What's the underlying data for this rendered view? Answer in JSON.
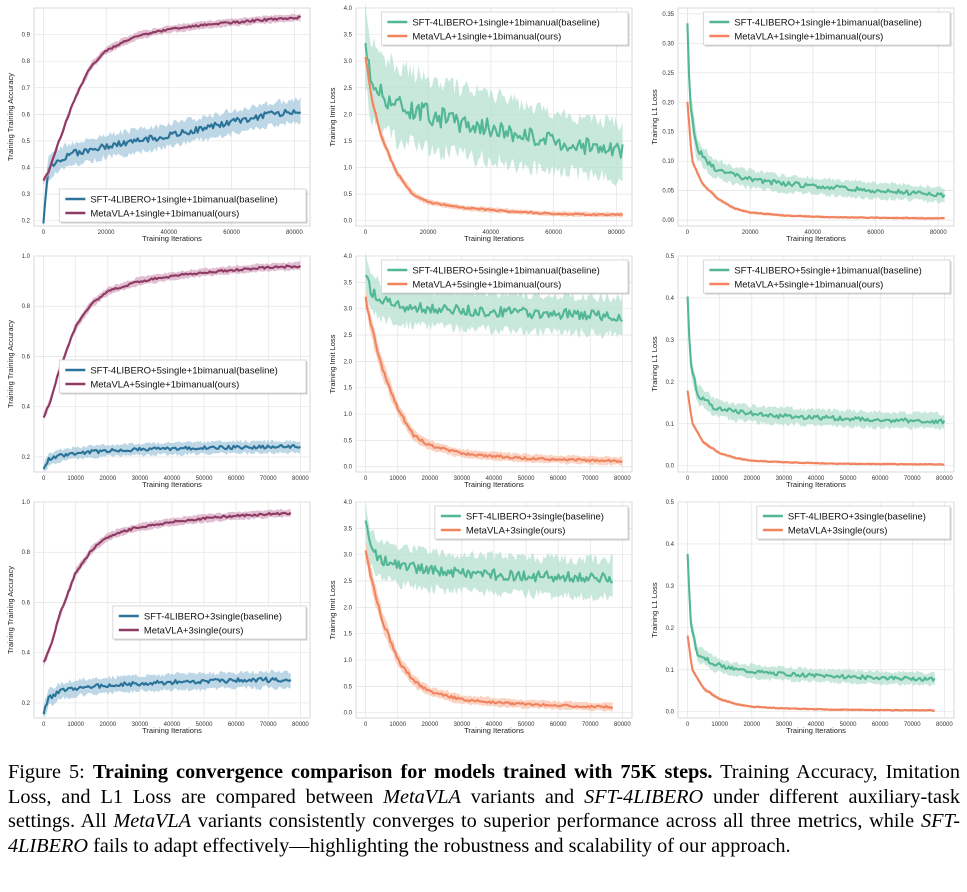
{
  "colors": {
    "baseline_acc": "#2b7399",
    "baseline_acc_band": "#a7c9de",
    "ours_acc": "#8e3a63",
    "ours_acc_band": "#d7a8c2",
    "baseline_loss": "#52b794",
    "baseline_loss_band": "#b6e0cf",
    "ours_loss": "#f1835f",
    "ours_loss_band": "#f8c4ae"
  },
  "caption": {
    "figure_label": "Figure 5:",
    "title": "Training convergence comparison for models trained with 75K steps.",
    "s1": "Training Accuracy, Imitation Loss, and L1 Loss are compared between",
    "metavla_1": "MetaVLA",
    "s2": "variants and",
    "sft_1": "SFT-4LIBERO",
    "s3": "under different auxiliary-task settings. All",
    "metavla_2": "MetaVLA",
    "s4": "variants consistently converges to superior performance across all three metrics, while",
    "sft_2": "SFT-4LIBERO",
    "s5": "fails to adapt effectively—highlighting the robustness and scalability of our approach."
  },
  "chart_data": [
    {
      "type": "line",
      "panel": "r1c1",
      "title": "",
      "xlabel": "Training Iterations",
      "ylabel": "Training Training Accuracy",
      "xlim": [
        -3000,
        85000
      ],
      "ylim": [
        0.18,
        1.0
      ],
      "xticks": [
        0,
        20000,
        40000,
        60000,
        80000
      ],
      "yticks": [
        0.2,
        0.3,
        0.4,
        0.5,
        0.6,
        0.7,
        0.8,
        0.9
      ],
      "ytick_labels": [
        "0.2",
        "0.3",
        "0.4",
        "0.5",
        "0.6",
        "0.7",
        "0.8",
        "0.9"
      ],
      "legend_position": "lower-right",
      "x_end": 82000,
      "series": [
        {
          "name": "SFT-4LIBERO+1single+1bimanual(baseline)",
          "role": "baseline",
          "metric": "acc",
          "x": [
            0,
            1500,
            5000,
            10000,
            20000,
            30000,
            40000,
            50000,
            60000,
            70000,
            82000
          ],
          "values": [
            0.2,
            0.4,
            0.43,
            0.455,
            0.48,
            0.5,
            0.52,
            0.545,
            0.57,
            0.595,
            0.615
          ],
          "band": 0.055
        },
        {
          "name": "MetaVLA+1single+1bimanual(ours)",
          "role": "ours",
          "metric": "acc",
          "x": [
            0,
            1500,
            5000,
            10000,
            15000,
            20000,
            25000,
            30000,
            40000,
            50000,
            60000,
            70000,
            82000
          ],
          "values": [
            0.35,
            0.38,
            0.5,
            0.66,
            0.78,
            0.84,
            0.87,
            0.895,
            0.92,
            0.935,
            0.945,
            0.955,
            0.965
          ],
          "band": 0.018
        }
      ]
    },
    {
      "type": "line",
      "panel": "r1c2",
      "title": "",
      "xlabel": "Training Iterations",
      "ylabel": "Training Imit Loss",
      "xlim": [
        -3000,
        85000
      ],
      "ylim": [
        -0.1,
        4.0
      ],
      "xticks": [
        0,
        20000,
        40000,
        60000,
        80000
      ],
      "yticks": [
        0.0,
        0.5,
        1.0,
        1.5,
        2.0,
        2.5,
        3.0,
        3.5,
        4.0
      ],
      "ytick_labels": [
        "0.0",
        "0.5",
        "1.0",
        "1.5",
        "2.0",
        "2.5",
        "3.0",
        "3.5",
        "4.0"
      ],
      "legend_position": "upper-right",
      "x_end": 82000,
      "series": [
        {
          "name": "SFT-4LIBERO+1single+1bimanual(baseline)",
          "role": "baseline",
          "metric": "loss",
          "x": [
            0,
            1500,
            5000,
            10000,
            20000,
            30000,
            40000,
            50000,
            60000,
            70000,
            82000
          ],
          "values": [
            3.3,
            2.7,
            2.4,
            2.2,
            2.0,
            1.85,
            1.75,
            1.6,
            1.5,
            1.4,
            1.3
          ],
          "band": 0.95
        },
        {
          "name": "MetaVLA+1single+1bimanual(ours)",
          "role": "ours",
          "metric": "loss",
          "x": [
            0,
            2000,
            5000,
            10000,
            15000,
            20000,
            30000,
            40000,
            50000,
            60000,
            70000,
            82000
          ],
          "values": [
            3.1,
            2.3,
            1.6,
            0.9,
            0.5,
            0.35,
            0.25,
            0.2,
            0.16,
            0.13,
            0.12,
            0.11
          ],
          "band": 0.15
        }
      ]
    },
    {
      "type": "line",
      "panel": "r1c3",
      "title": "",
      "xlabel": "Training Iterations",
      "ylabel": "Training L1 Loss",
      "xlim": [
        -3000,
        85000
      ],
      "ylim": [
        -0.01,
        0.36
      ],
      "xticks": [
        0,
        20000,
        40000,
        60000,
        80000
      ],
      "yticks": [
        0.0,
        0.05,
        0.1,
        0.15,
        0.2,
        0.25,
        0.3,
        0.35
      ],
      "ytick_labels": [
        "0.00",
        "0.05",
        "0.10",
        "0.15",
        "0.20",
        "0.25",
        "0.30",
        "0.35"
      ],
      "legend_position": "upper-right",
      "x_end": 82000,
      "series": [
        {
          "name": "SFT-4LIBERO+1single+1bimanual(baseline)",
          "role": "baseline",
          "metric": "loss",
          "x": [
            0,
            800,
            3000,
            8000,
            15000,
            25000,
            40000,
            55000,
            70000,
            82000
          ],
          "values": [
            0.34,
            0.2,
            0.12,
            0.09,
            0.075,
            0.065,
            0.058,
            0.052,
            0.047,
            0.042
          ],
          "band": 0.035
        },
        {
          "name": "MetaVLA+1single+1bimanual(ours)",
          "role": "ours",
          "metric": "loss",
          "x": [
            0,
            1500,
            5000,
            10000,
            15000,
            20000,
            30000,
            45000,
            60000,
            82000
          ],
          "values": [
            0.2,
            0.1,
            0.06,
            0.035,
            0.02,
            0.013,
            0.008,
            0.005,
            0.004,
            0.003
          ],
          "band": 0.008
        }
      ]
    },
    {
      "type": "line",
      "panel": "r2c1",
      "title": "",
      "xlabel": "Training Iterations",
      "ylabel": "Training Training Accuracy",
      "xlim": [
        -3000,
        83000
      ],
      "ylim": [
        0.14,
        1.0
      ],
      "xticks": [
        0,
        10000,
        20000,
        30000,
        40000,
        50000,
        60000,
        70000,
        80000
      ],
      "yticks": [
        0.2,
        0.4,
        0.6,
        0.8,
        1.0
      ],
      "ytick_labels": [
        "0.2",
        "0.4",
        "0.6",
        "0.8",
        "1.0"
      ],
      "legend_position": "center-right",
      "x_end": 80000,
      "series": [
        {
          "name": "SFT-4LIBERO+5single+1bimanual(baseline)",
          "role": "baseline",
          "metric": "acc",
          "x": [
            0,
            1500,
            5000,
            10000,
            20000,
            30000,
            40000,
            50000,
            60000,
            70000,
            80000
          ],
          "values": [
            0.15,
            0.19,
            0.205,
            0.215,
            0.225,
            0.23,
            0.233,
            0.236,
            0.238,
            0.24,
            0.242
          ],
          "band": 0.03
        },
        {
          "name": "MetaVLA+5single+1bimanual(ours)",
          "role": "ours",
          "metric": "acc",
          "x": [
            0,
            2000,
            5000,
            10000,
            15000,
            20000,
            25000,
            30000,
            40000,
            50000,
            60000,
            70000,
            80000
          ],
          "values": [
            0.36,
            0.42,
            0.55,
            0.72,
            0.81,
            0.86,
            0.88,
            0.9,
            0.92,
            0.935,
            0.945,
            0.955,
            0.96
          ],
          "band": 0.02
        }
      ]
    },
    {
      "type": "line",
      "panel": "r2c2",
      "title": "",
      "xlabel": "Training Iterations",
      "ylabel": "Training Imit Loss",
      "xlim": [
        -3000,
        83000
      ],
      "ylim": [
        -0.1,
        4.0
      ],
      "xticks": [
        0,
        10000,
        20000,
        30000,
        40000,
        50000,
        60000,
        70000,
        80000
      ],
      "yticks": [
        0.0,
        0.5,
        1.0,
        1.5,
        2.0,
        2.5,
        3.0,
        3.5,
        4.0
      ],
      "ytick_labels": [
        "0.0",
        "0.5",
        "1.0",
        "1.5",
        "2.0",
        "2.5",
        "3.0",
        "3.5",
        "4.0"
      ],
      "legend_position": "upper-right",
      "x_end": 80000,
      "series": [
        {
          "name": "SFT-4LIBERO+5single+1bimanual(baseline)",
          "role": "baseline",
          "metric": "loss",
          "x": [
            0,
            1500,
            5000,
            10000,
            20000,
            30000,
            40000,
            50000,
            60000,
            70000,
            80000
          ],
          "values": [
            3.7,
            3.35,
            3.15,
            3.05,
            3.0,
            2.97,
            2.95,
            2.92,
            2.9,
            2.88,
            2.86
          ],
          "band": 0.45
        },
        {
          "name": "MetaVLA+5single+1bimanual(ours)",
          "role": "ours",
          "metric": "loss",
          "x": [
            0,
            2000,
            5000,
            10000,
            15000,
            20000,
            30000,
            40000,
            50000,
            60000,
            70000,
            80000
          ],
          "values": [
            3.2,
            2.6,
            1.9,
            1.1,
            0.6,
            0.4,
            0.25,
            0.2,
            0.16,
            0.14,
            0.12,
            0.11
          ],
          "band": 0.25
        }
      ]
    },
    {
      "type": "line",
      "panel": "r2c3",
      "title": "",
      "xlabel": "Training Iterations",
      "ylabel": "Training L1 Loss",
      "xlim": [
        -3000,
        83000
      ],
      "ylim": [
        -0.015,
        0.5
      ],
      "xticks": [
        0,
        10000,
        20000,
        30000,
        40000,
        50000,
        60000,
        70000,
        80000
      ],
      "yticks": [
        0.0,
        0.1,
        0.2,
        0.3,
        0.4,
        0.5
      ],
      "ytick_labels": [
        "0.0",
        "0.1",
        "0.2",
        "0.3",
        "0.4",
        "0.5"
      ],
      "legend_position": "upper-right",
      "x_end": 80000,
      "series": [
        {
          "name": "SFT-4LIBERO+5single+1bimanual(baseline)",
          "role": "baseline",
          "metric": "loss",
          "x": [
            0,
            800,
            3000,
            8000,
            15000,
            25000,
            40000,
            55000,
            70000,
            80000
          ],
          "values": [
            0.4,
            0.25,
            0.17,
            0.14,
            0.128,
            0.12,
            0.115,
            0.11,
            0.107,
            0.105
          ],
          "band": 0.04
        },
        {
          "name": "MetaVLA+5single+1bimanual(ours)",
          "role": "ours",
          "metric": "loss",
          "x": [
            0,
            1500,
            5000,
            10000,
            15000,
            20000,
            30000,
            45000,
            60000,
            80000
          ],
          "values": [
            0.18,
            0.1,
            0.055,
            0.03,
            0.018,
            0.012,
            0.008,
            0.005,
            0.004,
            0.003
          ],
          "band": 0.01
        }
      ]
    },
    {
      "type": "line",
      "panel": "r3c1",
      "title": "",
      "xlabel": "Training Iterations",
      "ylabel": "Training Training Accuracy",
      "xlim": [
        -3000,
        83000
      ],
      "ylim": [
        0.14,
        1.0
      ],
      "xticks": [
        0,
        10000,
        20000,
        30000,
        40000,
        50000,
        60000,
        70000,
        80000
      ],
      "yticks": [
        0.2,
        0.4,
        0.6,
        0.8,
        1.0
      ],
      "ytick_labels": [
        "0.2",
        "0.4",
        "0.6",
        "0.8",
        "1.0"
      ],
      "legend_position": "center-right",
      "x_end": 77000,
      "series": [
        {
          "name": "SFT-4LIBERO+3single(baseline)",
          "role": "baseline",
          "metric": "acc",
          "x": [
            0,
            1500,
            5000,
            10000,
            20000,
            30000,
            40000,
            50000,
            60000,
            70000,
            77000
          ],
          "values": [
            0.16,
            0.22,
            0.245,
            0.26,
            0.27,
            0.278,
            0.283,
            0.286,
            0.29,
            0.292,
            0.294
          ],
          "band": 0.04
        },
        {
          "name": "MetaVLA+3single(ours)",
          "role": "ours",
          "metric": "acc",
          "x": [
            0,
            2000,
            5000,
            10000,
            15000,
            20000,
            25000,
            30000,
            40000,
            50000,
            60000,
            70000,
            77000
          ],
          "values": [
            0.36,
            0.42,
            0.55,
            0.72,
            0.81,
            0.86,
            0.885,
            0.9,
            0.92,
            0.935,
            0.945,
            0.952,
            0.956
          ],
          "band": 0.02
        }
      ]
    },
    {
      "type": "line",
      "panel": "r3c2",
      "title": "",
      "xlabel": "Training Iterations",
      "ylabel": "Training Imit Loss",
      "xlim": [
        -3000,
        83000
      ],
      "ylim": [
        -0.1,
        4.0
      ],
      "xticks": [
        0,
        10000,
        20000,
        30000,
        40000,
        50000,
        60000,
        70000,
        80000
      ],
      "yticks": [
        0.0,
        0.5,
        1.0,
        1.5,
        2.0,
        2.5,
        3.0,
        3.5,
        4.0
      ],
      "ytick_labels": [
        "0.0",
        "0.5",
        "1.0",
        "1.5",
        "2.0",
        "2.5",
        "3.0",
        "3.5",
        "4.0"
      ],
      "legend_position": "upper-right",
      "x_end": 77000,
      "series": [
        {
          "name": "SFT-4LIBERO+3single(baseline)",
          "role": "baseline",
          "metric": "loss",
          "x": [
            0,
            1500,
            5000,
            10000,
            20000,
            30000,
            40000,
            50000,
            60000,
            70000,
            77000
          ],
          "values": [
            3.6,
            3.1,
            2.9,
            2.8,
            2.7,
            2.65,
            2.62,
            2.6,
            2.58,
            2.56,
            2.55
          ],
          "band": 0.45
        },
        {
          "name": "MetaVLA+3single(ours)",
          "role": "ours",
          "metric": "loss",
          "x": [
            0,
            2000,
            5000,
            10000,
            15000,
            20000,
            30000,
            40000,
            50000,
            60000,
            70000,
            77000
          ],
          "values": [
            3.1,
            2.5,
            1.8,
            1.0,
            0.6,
            0.4,
            0.25,
            0.2,
            0.16,
            0.14,
            0.12,
            0.11
          ],
          "band": 0.25
        }
      ]
    },
    {
      "type": "line",
      "panel": "r3c3",
      "title": "",
      "xlabel": "Training Iterations",
      "ylabel": "Training L1 Loss",
      "xlim": [
        -3000,
        83000
      ],
      "ylim": [
        -0.015,
        0.5
      ],
      "xticks": [
        0,
        10000,
        20000,
        30000,
        40000,
        50000,
        60000,
        70000,
        80000
      ],
      "yticks": [
        0.0,
        0.1,
        0.2,
        0.3,
        0.4,
        0.5
      ],
      "ytick_labels": [
        "0.0",
        "0.1",
        "0.2",
        "0.3",
        "0.4",
        "0.5"
      ],
      "legend_position": "upper-right",
      "x_end": 77000,
      "series": [
        {
          "name": "SFT-4LIBERO+3single(baseline)",
          "role": "baseline",
          "metric": "loss",
          "x": [
            0,
            800,
            3000,
            8000,
            15000,
            25000,
            40000,
            55000,
            70000,
            77000
          ],
          "values": [
            0.38,
            0.22,
            0.14,
            0.115,
            0.1,
            0.092,
            0.086,
            0.082,
            0.079,
            0.077
          ],
          "band": 0.035
        },
        {
          "name": "MetaVLA+3single(ours)",
          "role": "ours",
          "metric": "loss",
          "x": [
            0,
            1500,
            5000,
            10000,
            15000,
            20000,
            30000,
            45000,
            60000,
            77000
          ],
          "values": [
            0.18,
            0.1,
            0.055,
            0.03,
            0.018,
            0.012,
            0.008,
            0.005,
            0.004,
            0.003
          ],
          "band": 0.01
        }
      ]
    }
  ]
}
